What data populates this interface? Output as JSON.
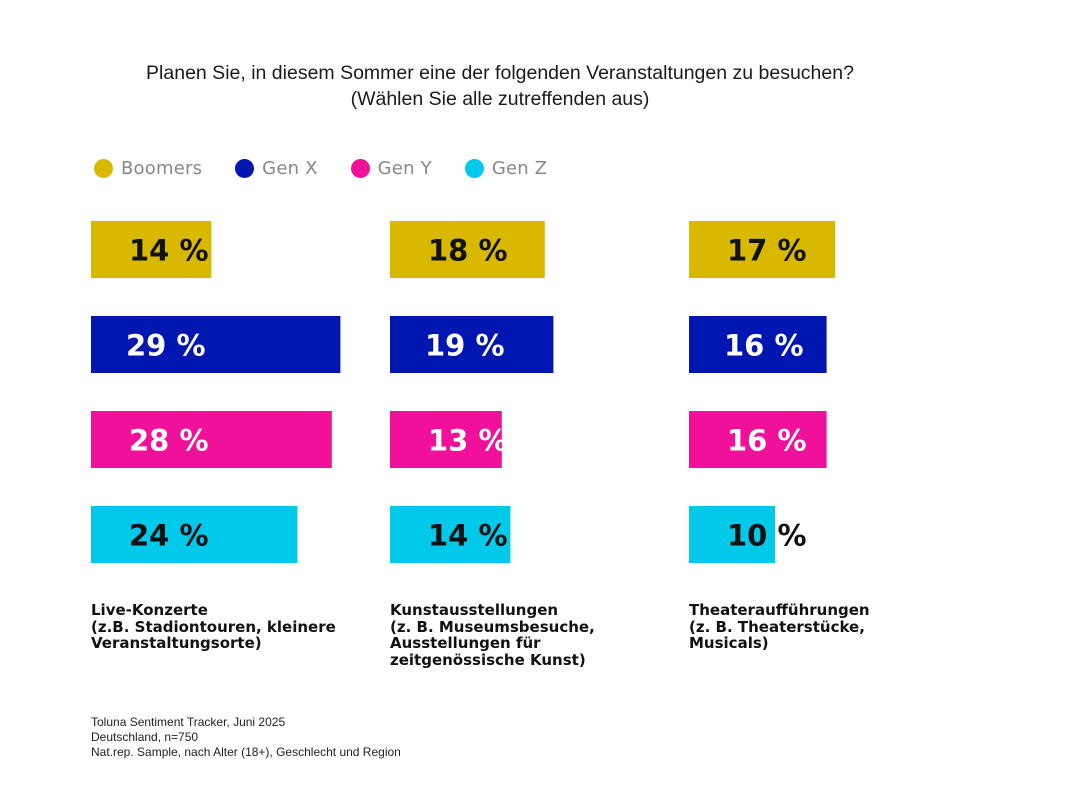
{
  "title": {
    "line1": "Planen Sie, in diesem Sommer eine der folgenden Veranstaltungen zu besuchen?",
    "line2": "(Wählen Sie alle zutreffenden aus)"
  },
  "colors": {
    "boomers": "#D9B800",
    "gen_x": "#0016B0",
    "gen_y": "#F0109A",
    "gen_z": "#00C9EA"
  },
  "chart_data": {
    "type": "bar",
    "orientation": "horizontal",
    "title": "Planen Sie, in diesem Sommer eine der folgenden Veranstaltungen zu besuchen? (Wählen Sie alle zutreffenden aus)",
    "unit": "%",
    "legend_placement": "top-left",
    "grid": false,
    "series": [
      {
        "name": "Boomers",
        "color": "#D9B800",
        "label_color": "#111111"
      },
      {
        "name": "Gen X",
        "color": "#0016B0",
        "label_color": "#ffffff"
      },
      {
        "name": "Gen Y",
        "color": "#F0109A",
        "label_color": "#ffffff"
      },
      {
        "name": "Gen Z",
        "color": "#00C9EA",
        "label_color": "#111111"
      }
    ],
    "groups": [
      {
        "label_lines": [
          "Live-Konzerte",
          "(z.B. Stadiontouren, kleinere",
          "Veranstaltungsorte)"
        ],
        "values": [
          14,
          29,
          28,
          24
        ],
        "value_labels": [
          "14 %",
          "29 %",
          "28 %",
          "24 %"
        ]
      },
      {
        "label_lines": [
          "Kunstausstellungen",
          "(z. B. Museumsbesuche,",
          "Ausstellungen für",
          "zeitgenössische Kunst)"
        ],
        "values": [
          18,
          19,
          13,
          14
        ],
        "value_labels": [
          "18 %",
          "19 %",
          "13 %",
          "14 %"
        ]
      },
      {
        "label_lines": [
          "Theateraufführungen",
          "(z. B. Theaterstücke,",
          "Musicals)"
        ],
        "values": [
          17,
          16,
          16,
          10
        ],
        "value_labels": [
          "17 %",
          "16 %",
          "16 %",
          "10 %"
        ]
      }
    ]
  },
  "source": {
    "line1": "Toluna Sentiment Tracker,  Juni 2025",
    "line2": "Deutschland, n=750",
    "line3": "Nat.rep. Sample, nach Alter (18+), Geschlecht und Region"
  }
}
